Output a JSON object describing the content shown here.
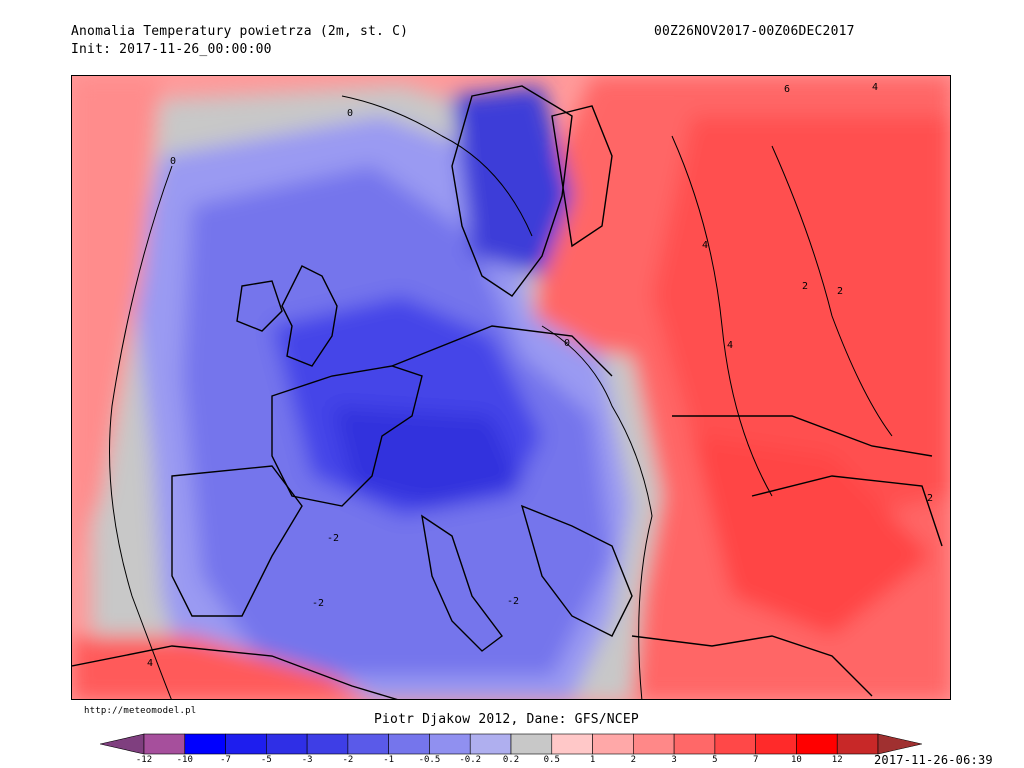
{
  "header": {
    "title": "Anomalia Temperatury powietrza (2m, st. C)",
    "init": "Init: 2017-11-26_00:00:00",
    "period": "00Z26NOV2017-00Z06DEC2017"
  },
  "footer": {
    "url": "http://meteomodel.pl",
    "credit": "Piotr Djakow 2012, Dane: GFS/NCEP",
    "timestamp": "2017-11-26-06:39"
  },
  "map": {
    "contour_labels": [
      "0",
      "0",
      "0",
      "-2",
      "-2",
      "-2",
      "2",
      "2",
      "2",
      "4",
      "4",
      "4",
      "6",
      "4"
    ]
  },
  "legend": {
    "colors": [
      "#7f3f7f",
      "#a64f9c",
      "#0000ff",
      "#1e1eee",
      "#2f2fe6",
      "#3e3ee6",
      "#5a5ae9",
      "#7575ec",
      "#9090f0",
      "#afafef",
      "#c8c8c8",
      "#ffc8c8",
      "#ffa8a8",
      "#ff8888",
      "#ff6868",
      "#ff4848",
      "#ff2a2a",
      "#ff0000",
      "#c82828",
      "#a03030"
    ],
    "labels": [
      "-12",
      "-10",
      "-7",
      "-5",
      "-3",
      "-2",
      "-1",
      "-0.5",
      "-0.2",
      "0.2",
      "0.5",
      "1",
      "2",
      "3",
      "5",
      "7",
      "10",
      "12"
    ]
  }
}
